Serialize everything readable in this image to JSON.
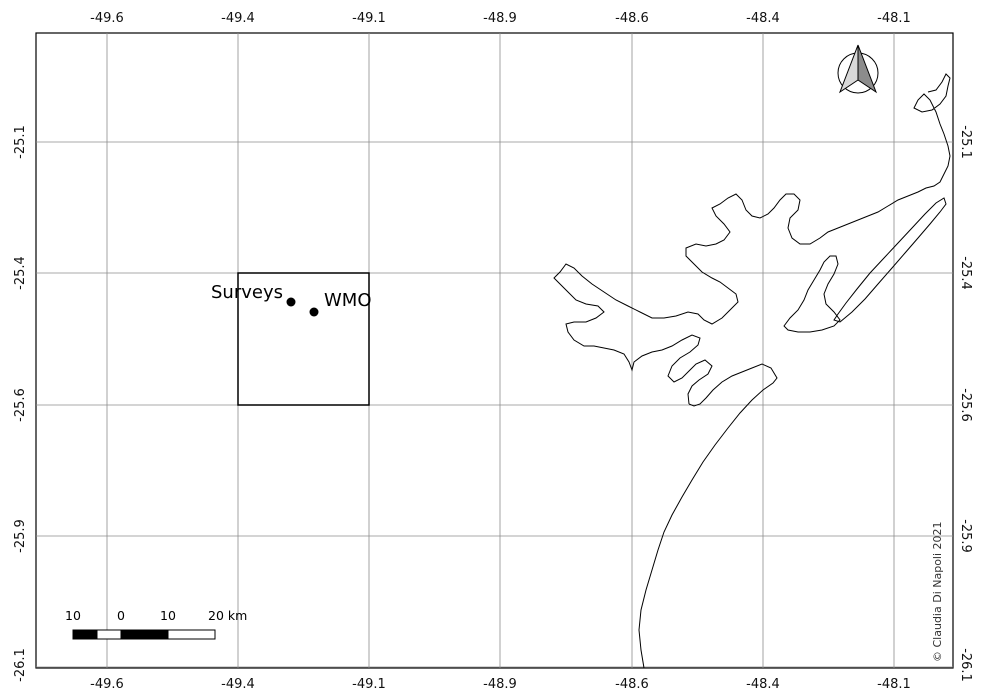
{
  "map": {
    "longitude_ticks": [
      "-49.6",
      "-49.4",
      "-49.1",
      "-48.9",
      "-48.6",
      "-48.4",
      "-48.1"
    ],
    "latitude_ticks": [
      "-25.1",
      "-25.4",
      "-25.6",
      "-25.9",
      "-26.1"
    ],
    "points": [
      {
        "label": "Surveys",
        "lon": -49.27,
        "lat": -25.465
      },
      {
        "label": "WMO",
        "lon": -49.235,
        "lat": -25.485
      }
    ],
    "study_area_box": {
      "lon_min": -49.4,
      "lon_max": -49.1,
      "lat_min": -25.6,
      "lat_max": -25.4
    },
    "scale_bar": {
      "labels": [
        "10",
        "0",
        "10",
        "20 km"
      ]
    },
    "north_arrow_icon": "north-arrow-icon",
    "copyright": "© Claudia Di Napoli 2021",
    "colors": {
      "frame": "#000000",
      "grid": "#8c8c8c",
      "coastline": "#000000"
    }
  }
}
